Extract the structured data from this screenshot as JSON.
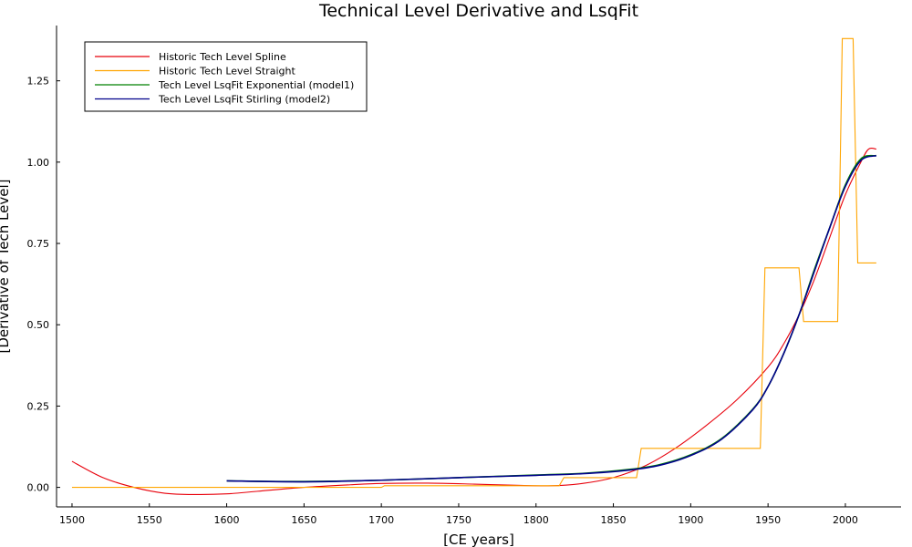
{
  "chart_data": {
    "type": "line",
    "title": "Technical Level Derivative and LsqFit",
    "xlabel": "[CE years]",
    "ylabel": "[Derivative of Tech Level]",
    "xlim": [
      1490,
      2036
    ],
    "ylim": [
      -0.06,
      1.42
    ],
    "x_ticks": [
      1500,
      1550,
      1600,
      1650,
      1700,
      1750,
      1800,
      1850,
      1900,
      1950,
      2000
    ],
    "y_ticks": [
      0.0,
      0.25,
      0.5,
      0.75,
      1.0,
      1.25
    ],
    "x_tick_labels": [
      "1500",
      "1550",
      "1600",
      "1650",
      "1700",
      "1750",
      "1800",
      "1850",
      "1900",
      "1950",
      "2000"
    ],
    "y_tick_labels": [
      "0.00",
      "0.25",
      "0.50",
      "0.75",
      "1.00",
      "1.25"
    ],
    "grid": false,
    "legend_position": "top-left",
    "series": [
      {
        "name": "Historic Tech Level Spline",
        "color": "#e8000b",
        "x": [
          1500,
          1520,
          1540,
          1560,
          1580,
          1600,
          1620,
          1650,
          1680,
          1700,
          1730,
          1760,
          1790,
          1810,
          1830,
          1850,
          1870,
          1890,
          1910,
          1930,
          1950,
          1960,
          1970,
          1980,
          1990,
          2000,
          2010,
          2015,
          2020
        ],
        "y": [
          0.08,
          0.03,
          0.0,
          -0.018,
          -0.022,
          -0.02,
          -0.012,
          0.0,
          0.008,
          0.012,
          0.013,
          0.01,
          0.006,
          0.005,
          0.012,
          0.03,
          0.065,
          0.12,
          0.19,
          0.27,
          0.37,
          0.44,
          0.53,
          0.64,
          0.77,
          0.9,
          1.0,
          1.04,
          1.04
        ]
      },
      {
        "name": "Historic Tech Level Straight",
        "color": "#ffa500",
        "x": [
          1500,
          1700,
          1702,
          1815,
          1818,
          1865,
          1868,
          1945,
          1948,
          1970,
          1973,
          1995,
          1998,
          2005,
          2008,
          2020
        ],
        "y": [
          0.0,
          0.0,
          0.005,
          0.005,
          0.03,
          0.03,
          0.12,
          0.12,
          0.675,
          0.675,
          0.51,
          0.51,
          1.38,
          1.38,
          0.69,
          0.69
        ]
      },
      {
        "name": "Tech Level LsqFit Exponential (model1)",
        "color": "#008000",
        "x": [
          1600,
          1650,
          1700,
          1750,
          1800,
          1830,
          1860,
          1880,
          1900,
          1920,
          1940,
          1950,
          1960,
          1970,
          1980,
          1990,
          2000,
          2010,
          2020
        ],
        "y": [
          0.02,
          0.018,
          0.022,
          0.03,
          0.038,
          0.043,
          0.055,
          0.07,
          0.1,
          0.15,
          0.24,
          0.31,
          0.41,
          0.53,
          0.67,
          0.8,
          0.93,
          1.01,
          1.02
        ]
      },
      {
        "name": "Tech Level LsqFit Stirling (model2)",
        "color": "#00008b",
        "x": [
          1600,
          1650,
          1700,
          1750,
          1800,
          1830,
          1860,
          1880,
          1900,
          1920,
          1940,
          1950,
          1960,
          1970,
          1980,
          1990,
          2000,
          2010,
          2020
        ],
        "y": [
          0.02,
          0.017,
          0.022,
          0.03,
          0.037,
          0.042,
          0.053,
          0.068,
          0.098,
          0.148,
          0.238,
          0.31,
          0.41,
          0.53,
          0.665,
          0.8,
          0.925,
          1.005,
          1.02
        ]
      }
    ]
  }
}
